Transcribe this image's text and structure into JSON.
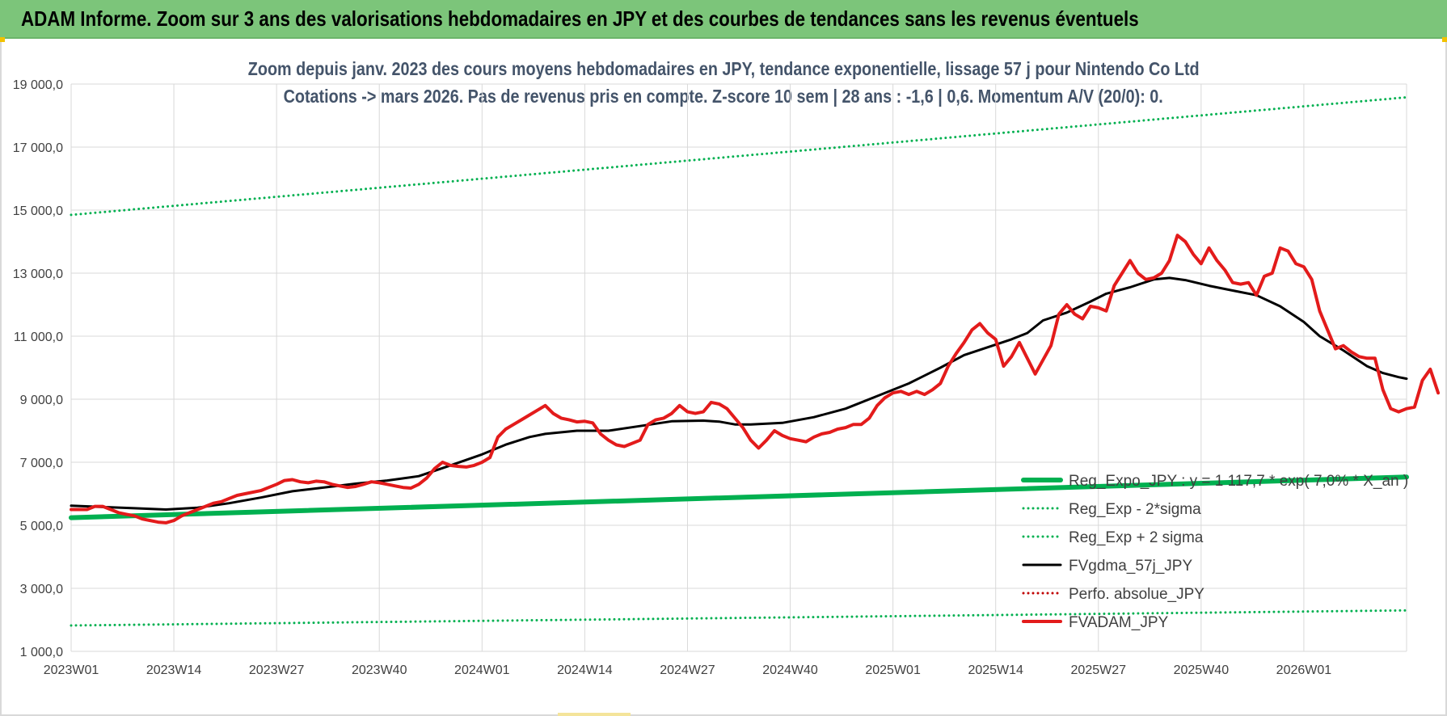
{
  "header": {
    "title": "ADAM Informe. Zoom sur 3 ans des valorisations hebdomadaires en JPY et des courbes de tendances sans les revenus éventuels"
  },
  "chart_data": {
    "type": "line",
    "title_line1": "Zoom depuis janv. 2023 des cours moyens hebdomadaires en JPY, tendance exponentielle, lissage 57 j pour Nintendo Co Ltd",
    "title_line2": "Cotations -> mars 2026. Pas de revenus pris en compte. Z-score 10 sem | 28 ans : -1,6 | 0,6. Momentum A/V (20/0): 0.",
    "xlabel": "",
    "ylabel": "",
    "ylim": [
      1000,
      19000
    ],
    "yticks": [
      "1 000,0",
      "3 000,0",
      "5 000,0",
      "7 000,0",
      "9 000,0",
      "11 000,0",
      "13 000,0",
      "15 000,0",
      "17 000,0",
      "19 000,0"
    ],
    "ytick_values": [
      1000,
      3000,
      5000,
      7000,
      9000,
      11000,
      13000,
      15000,
      17000,
      19000
    ],
    "xticks": [
      "2023W01",
      "2023W14",
      "2023W27",
      "2023W40",
      "2024W01",
      "2024W14",
      "2024W27",
      "2024W40",
      "2025W01",
      "2025W14",
      "2025W27",
      "2025W40",
      "2026W01"
    ],
    "xtick_positions": [
      0,
      13,
      26,
      39,
      52,
      65,
      78,
      91,
      104,
      117,
      130,
      143,
      156
    ],
    "x_range": [
      0,
      169
    ],
    "grid": true,
    "legend_position": "bottom-right, inside plot",
    "series": [
      {
        "name": "Reg_Expo_JPY : y = 1 117,7 * exp( 7,0% * X_an )",
        "color": "#00b050",
        "style": "solid",
        "width": 6,
        "points": [
          [
            0,
            5240
          ],
          [
            169,
            6530
          ]
        ]
      },
      {
        "name": "Reg_Exp - 2*sigma",
        "color": "#00b050",
        "style": "dotted",
        "width": 3,
        "points": [
          [
            0,
            1820
          ],
          [
            169,
            2300
          ]
        ]
      },
      {
        "name": "Reg_Exp + 2 sigma",
        "color": "#00b050",
        "style": "dotted",
        "width": 3,
        "points": [
          [
            0,
            14850
          ],
          [
            169,
            18580
          ]
        ]
      },
      {
        "name": "FVgdma_57j_JPY",
        "color": "#000000",
        "style": "solid",
        "width": 3,
        "points": [
          [
            0,
            5620
          ],
          [
            4,
            5580
          ],
          [
            8,
            5540
          ],
          [
            12,
            5500
          ],
          [
            16,
            5560
          ],
          [
            20,
            5700
          ],
          [
            24,
            5880
          ],
          [
            28,
            6080
          ],
          [
            32,
            6200
          ],
          [
            36,
            6320
          ],
          [
            40,
            6420
          ],
          [
            44,
            6560
          ],
          [
            48,
            6900
          ],
          [
            52,
            7250
          ],
          [
            55,
            7560
          ],
          [
            58,
            7800
          ],
          [
            60,
            7900
          ],
          [
            64,
            8000
          ],
          [
            68,
            8000
          ],
          [
            72,
            8150
          ],
          [
            76,
            8300
          ],
          [
            80,
            8320
          ],
          [
            82,
            8290
          ],
          [
            84,
            8200
          ],
          [
            86,
            8200
          ],
          [
            90,
            8250
          ],
          [
            94,
            8430
          ],
          [
            98,
            8700
          ],
          [
            102,
            9100
          ],
          [
            106,
            9500
          ],
          [
            110,
            10000
          ],
          [
            113,
            10400
          ],
          [
            116,
            10650
          ],
          [
            119,
            10900
          ],
          [
            121,
            11100
          ],
          [
            123,
            11500
          ],
          [
            126,
            11750
          ],
          [
            129,
            12100
          ],
          [
            131,
            12350
          ],
          [
            134,
            12550
          ],
          [
            137,
            12800
          ],
          [
            139,
            12850
          ],
          [
            141,
            12780
          ],
          [
            144,
            12600
          ],
          [
            147,
            12450
          ],
          [
            150,
            12300
          ],
          [
            153,
            11950
          ],
          [
            156,
            11450
          ],
          [
            158,
            11000
          ],
          [
            161,
            10550
          ],
          [
            164,
            10050
          ],
          [
            166,
            9830
          ],
          [
            168,
            9700
          ],
          [
            169,
            9650
          ]
        ]
      },
      {
        "name": "Perfo. absolue_JPY",
        "color": "#c00000",
        "style": "dotted",
        "width": 3,
        "points": []
      },
      {
        "name": "FVADAM_JPY",
        "color": "#e31b1b",
        "style": "solid",
        "width": 4,
        "points": [
          [
            0,
            5500
          ],
          [
            2,
            5500
          ],
          [
            3,
            5600
          ],
          [
            4,
            5600
          ],
          [
            5,
            5500
          ],
          [
            6,
            5400
          ],
          [
            7,
            5350
          ],
          [
            8,
            5300
          ],
          [
            9,
            5200
          ],
          [
            10,
            5150
          ],
          [
            11,
            5100
          ],
          [
            12,
            5080
          ],
          [
            13,
            5150
          ],
          [
            14,
            5300
          ],
          [
            15,
            5400
          ],
          [
            16,
            5500
          ],
          [
            17,
            5600
          ],
          [
            18,
            5700
          ],
          [
            19,
            5750
          ],
          [
            20,
            5850
          ],
          [
            21,
            5950
          ],
          [
            22,
            6000
          ],
          [
            24,
            6100
          ],
          [
            25,
            6200
          ],
          [
            26,
            6300
          ],
          [
            27,
            6420
          ],
          [
            28,
            6450
          ],
          [
            29,
            6380
          ],
          [
            30,
            6350
          ],
          [
            31,
            6400
          ],
          [
            32,
            6380
          ],
          [
            33,
            6300
          ],
          [
            34,
            6250
          ],
          [
            35,
            6200
          ],
          [
            36,
            6230
          ],
          [
            37,
            6300
          ],
          [
            38,
            6380
          ],
          [
            39,
            6350
          ],
          [
            40,
            6300
          ],
          [
            41,
            6250
          ],
          [
            42,
            6200
          ],
          [
            43,
            6180
          ],
          [
            44,
            6300
          ],
          [
            45,
            6500
          ],
          [
            46,
            6800
          ],
          [
            47,
            7000
          ],
          [
            48,
            6900
          ],
          [
            49,
            6870
          ],
          [
            50,
            6850
          ],
          [
            51,
            6900
          ],
          [
            52,
            7000
          ],
          [
            53,
            7150
          ],
          [
            54,
            7800
          ],
          [
            55,
            8050
          ],
          [
            56,
            8200
          ],
          [
            57,
            8350
          ],
          [
            58,
            8500
          ],
          [
            59,
            8650
          ],
          [
            60,
            8800
          ],
          [
            61,
            8550
          ],
          [
            62,
            8400
          ],
          [
            63,
            8350
          ],
          [
            64,
            8280
          ],
          [
            65,
            8300
          ],
          [
            66,
            8250
          ],
          [
            67,
            7900
          ],
          [
            68,
            7700
          ],
          [
            69,
            7550
          ],
          [
            70,
            7500
          ],
          [
            71,
            7600
          ],
          [
            72,
            7700
          ],
          [
            73,
            8200
          ],
          [
            74,
            8350
          ],
          [
            75,
            8400
          ],
          [
            76,
            8550
          ],
          [
            77,
            8800
          ],
          [
            78,
            8600
          ],
          [
            79,
            8550
          ],
          [
            80,
            8600
          ],
          [
            81,
            8900
          ],
          [
            82,
            8850
          ],
          [
            83,
            8700
          ],
          [
            84,
            8400
          ],
          [
            85,
            8100
          ],
          [
            86,
            7700
          ],
          [
            87,
            7450
          ],
          [
            88,
            7700
          ],
          [
            89,
            8000
          ],
          [
            90,
            7850
          ],
          [
            91,
            7750
          ],
          [
            92,
            7700
          ],
          [
            93,
            7650
          ],
          [
            94,
            7800
          ],
          [
            95,
            7900
          ],
          [
            96,
            7950
          ],
          [
            97,
            8050
          ],
          [
            98,
            8100
          ],
          [
            99,
            8200
          ],
          [
            100,
            8200
          ],
          [
            101,
            8400
          ],
          [
            102,
            8800
          ],
          [
            103,
            9050
          ],
          [
            104,
            9200
          ],
          [
            105,
            9250
          ],
          [
            106,
            9150
          ],
          [
            107,
            9250
          ],
          [
            108,
            9150
          ],
          [
            109,
            9300
          ],
          [
            110,
            9500
          ],
          [
            111,
            10050
          ],
          [
            112,
            10450
          ],
          [
            113,
            10800
          ],
          [
            114,
            11200
          ],
          [
            115,
            11400
          ],
          [
            116,
            11100
          ],
          [
            117,
            10900
          ],
          [
            118,
            10050
          ],
          [
            119,
            10350
          ],
          [
            120,
            10800
          ],
          [
            121,
            10300
          ],
          [
            122,
            9800
          ],
          [
            123,
            10250
          ],
          [
            124,
            10700
          ],
          [
            125,
            11700
          ],
          [
            126,
            12000
          ],
          [
            127,
            11700
          ],
          [
            128,
            11550
          ],
          [
            129,
            11950
          ],
          [
            130,
            11900
          ],
          [
            131,
            11800
          ],
          [
            132,
            12600
          ],
          [
            133,
            13000
          ],
          [
            134,
            13400
          ],
          [
            135,
            13000
          ],
          [
            136,
            12800
          ],
          [
            137,
            12850
          ],
          [
            138,
            13000
          ],
          [
            139,
            13400
          ],
          [
            140,
            14200
          ],
          [
            141,
            14000
          ],
          [
            142,
            13600
          ],
          [
            143,
            13300
          ],
          [
            144,
            13800
          ],
          [
            145,
            13400
          ],
          [
            146,
            13100
          ],
          [
            147,
            12700
          ],
          [
            148,
            12650
          ],
          [
            149,
            12700
          ],
          [
            150,
            12300
          ],
          [
            151,
            12900
          ],
          [
            152,
            13000
          ],
          [
            153,
            13800
          ],
          [
            154,
            13700
          ],
          [
            155,
            13300
          ],
          [
            156,
            13200
          ],
          [
            157,
            12800
          ],
          [
            158,
            11800
          ],
          [
            159,
            11200
          ],
          [
            160,
            10600
          ],
          [
            161,
            10700
          ],
          [
            162,
            10500
          ],
          [
            163,
            10350
          ],
          [
            164,
            10300
          ],
          [
            165,
            10300
          ],
          [
            166,
            9300
          ],
          [
            167,
            8700
          ],
          [
            168,
            8600
          ],
          [
            169,
            8700
          ],
          [
            170,
            8750
          ],
          [
            171,
            9600
          ],
          [
            172,
            9950
          ],
          [
            173,
            9200
          ]
        ]
      }
    ]
  }
}
